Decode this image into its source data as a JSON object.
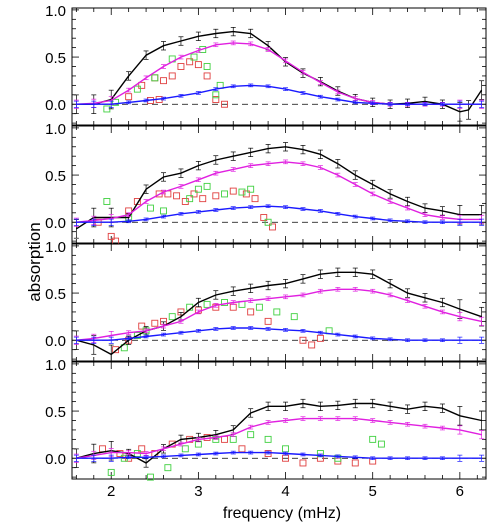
{
  "chart_data": {
    "type": "line",
    "xlabel": "frequency (mHz)",
    "ylabel": "absorption",
    "xlim": [
      1.55,
      6.3
    ],
    "ylim": [
      -0.22,
      1.02
    ],
    "x_ticks": [
      2,
      3,
      4,
      5,
      6
    ],
    "y_ticks": [
      0.0,
      0.5,
      1.0
    ],
    "y_tick_labels": [
      "0.0",
      "0.5",
      "1.0"
    ],
    "reference_line": 0.0,
    "colors": {
      "black": "#000000",
      "magenta": "#e020e0",
      "blue": "#1a1aff",
      "red_squares": "#e04040",
      "green_squares": "#40d040"
    },
    "panels": [
      {
        "series": [
          {
            "color": "black",
            "x": [
              1.6,
              1.8,
              2.0,
              2.2,
              2.4,
              2.6,
              2.8,
              3.0,
              3.2,
              3.4,
              3.6,
              3.8,
              4.0,
              4.2,
              4.4,
              4.6,
              4.8,
              5.0,
              5.2,
              5.4,
              5.6,
              5.8,
              6.0,
              6.1,
              6.25
            ],
            "y": [
              0.0,
              0.0,
              0.05,
              0.3,
              0.52,
              0.62,
              0.67,
              0.72,
              0.75,
              0.77,
              0.75,
              0.62,
              0.45,
              0.33,
              0.24,
              0.14,
              0.06,
              0.02,
              0.0,
              0.01,
              0.03,
              0.0,
              -0.08,
              -0.06,
              0.15
            ]
          },
          {
            "color": "magenta",
            "x": [
              1.6,
              1.8,
              2.0,
              2.2,
              2.4,
              2.6,
              2.8,
              3.0,
              3.2,
              3.4,
              3.6,
              3.8,
              4.0,
              4.2,
              4.4,
              4.6,
              4.8,
              5.0,
              5.2,
              5.4,
              5.6,
              5.8,
              6.0,
              6.25
            ],
            "y": [
              0.0,
              0.01,
              0.04,
              0.15,
              0.28,
              0.4,
              0.5,
              0.57,
              0.63,
              0.65,
              0.64,
              0.58,
              0.46,
              0.34,
              0.23,
              0.13,
              0.06,
              0.02,
              0.0,
              0.0,
              0.0,
              0.0,
              0.0,
              0.0
            ]
          },
          {
            "color": "blue",
            "x": [
              1.6,
              1.8,
              2.0,
              2.2,
              2.4,
              2.6,
              2.8,
              3.0,
              3.2,
              3.4,
              3.6,
              3.8,
              4.0,
              4.2,
              4.4,
              4.6,
              4.8,
              5.0,
              5.2,
              5.4,
              5.6,
              5.8,
              6.0,
              6.25
            ],
            "y": [
              0.0,
              0.0,
              0.0,
              0.02,
              0.04,
              0.06,
              0.09,
              0.12,
              0.16,
              0.19,
              0.2,
              0.19,
              0.16,
              0.12,
              0.08,
              0.05,
              0.02,
              0.01,
              0.0,
              0.0,
              0.0,
              0.0,
              0.0,
              0.0
            ]
          }
        ],
        "red_squares": {
          "x": [
            2.2,
            2.35,
            2.5,
            2.6,
            2.7,
            2.8,
            2.9,
            3.0,
            3.1,
            3.2,
            3.3,
            2.45,
            2.55
          ],
          "y": [
            0.08,
            0.2,
            0.28,
            0.25,
            0.3,
            0.4,
            0.45,
            0.42,
            0.3,
            0.05,
            0.0,
            0.04,
            0.05
          ]
        },
        "green_squares": {
          "x": [
            1.95,
            2.05,
            2.3,
            2.5,
            2.7,
            2.95,
            3.05,
            3.1,
            3.2,
            3.25
          ],
          "y": [
            -0.05,
            0.02,
            0.16,
            0.28,
            0.48,
            0.5,
            0.58,
            0.4,
            0.1,
            0.2
          ]
        }
      },
      {
        "series": [
          {
            "color": "black",
            "x": [
              1.6,
              1.8,
              2.0,
              2.2,
              2.4,
              2.6,
              2.8,
              3.0,
              3.2,
              3.4,
              3.6,
              3.8,
              4.0,
              4.2,
              4.4,
              4.6,
              4.8,
              5.0,
              5.2,
              5.4,
              5.6,
              5.8,
              6.0,
              6.25
            ],
            "y": [
              -0.07,
              0.05,
              0.05,
              0.05,
              0.35,
              0.48,
              0.52,
              0.6,
              0.66,
              0.7,
              0.74,
              0.78,
              0.8,
              0.77,
              0.72,
              0.62,
              0.5,
              0.4,
              0.3,
              0.22,
              0.15,
              0.12,
              0.08,
              0.08
            ]
          },
          {
            "color": "magenta",
            "x": [
              1.6,
              1.8,
              2.0,
              2.2,
              2.4,
              2.6,
              2.8,
              3.0,
              3.2,
              3.4,
              3.6,
              3.8,
              4.0,
              4.2,
              4.4,
              4.6,
              4.8,
              5.0,
              5.2,
              5.4,
              5.6,
              5.8,
              6.0,
              6.25
            ],
            "y": [
              0.0,
              0.02,
              0.04,
              0.08,
              0.22,
              0.32,
              0.38,
              0.45,
              0.52,
              0.56,
              0.6,
              0.62,
              0.64,
              0.62,
              0.58,
              0.5,
              0.4,
              0.3,
              0.22,
              0.15,
              0.08,
              0.05,
              0.03,
              0.03
            ]
          },
          {
            "color": "blue",
            "x": [
              1.6,
              1.8,
              2.0,
              2.2,
              2.4,
              2.6,
              2.8,
              3.0,
              3.2,
              3.4,
              3.6,
              3.8,
              4.0,
              4.2,
              4.4,
              4.6,
              4.8,
              5.0,
              5.2,
              5.4,
              5.6,
              5.8,
              6.0,
              6.25
            ],
            "y": [
              0.0,
              0.0,
              0.0,
              0.01,
              0.03,
              0.06,
              0.09,
              0.11,
              0.13,
              0.15,
              0.16,
              0.17,
              0.16,
              0.14,
              0.12,
              0.09,
              0.06,
              0.04,
              0.02,
              0.01,
              0.0,
              0.0,
              0.0,
              0.0
            ]
          }
        ],
        "red_squares": {
          "x": [
            1.85,
            2.0,
            2.05,
            2.2,
            2.3,
            2.55,
            2.65,
            2.75,
            2.85,
            2.95,
            3.05,
            3.2,
            3.4,
            3.55,
            3.65,
            3.75,
            3.85
          ],
          "y": [
            0.0,
            -0.15,
            -0.2,
            0.12,
            0.22,
            0.3,
            0.3,
            0.28,
            0.22,
            0.3,
            0.25,
            0.28,
            0.33,
            0.3,
            0.25,
            0.05,
            -0.05
          ]
        },
        "green_squares": {
          "x": [
            1.95,
            2.2,
            2.45,
            2.6,
            2.9,
            3.0,
            3.1,
            3.3,
            3.5,
            3.6,
            3.8
          ],
          "y": [
            0.22,
            0.05,
            0.15,
            0.12,
            0.25,
            0.35,
            0.38,
            0.3,
            0.32,
            0.35,
            0.0
          ]
        }
      },
      {
        "series": [
          {
            "color": "black",
            "x": [
              1.6,
              1.8,
              2.0,
              2.2,
              2.4,
              2.6,
              2.8,
              3.0,
              3.2,
              3.4,
              3.6,
              3.8,
              4.0,
              4.2,
              4.4,
              4.6,
              4.8,
              5.0,
              5.2,
              5.4,
              5.6,
              5.8,
              6.0,
              6.25
            ],
            "y": [
              0.0,
              -0.05,
              -0.15,
              0.0,
              0.1,
              0.15,
              0.25,
              0.4,
              0.48,
              0.52,
              0.55,
              0.58,
              0.6,
              0.65,
              0.7,
              0.72,
              0.72,
              0.7,
              0.6,
              0.5,
              0.45,
              0.4,
              0.33,
              0.25
            ]
          },
          {
            "color": "magenta",
            "x": [
              1.6,
              1.8,
              2.0,
              2.2,
              2.4,
              2.6,
              2.8,
              3.0,
              3.2,
              3.4,
              3.6,
              3.8,
              4.0,
              4.2,
              4.4,
              4.6,
              4.8,
              5.0,
              5.2,
              5.4,
              5.6,
              5.8,
              6.0,
              6.25
            ],
            "y": [
              0.0,
              0.02,
              0.05,
              0.08,
              0.1,
              0.15,
              0.2,
              0.3,
              0.37,
              0.4,
              0.42,
              0.44,
              0.46,
              0.48,
              0.52,
              0.54,
              0.54,
              0.52,
              0.48,
              0.42,
              0.36,
              0.3,
              0.25,
              0.2
            ]
          },
          {
            "color": "blue",
            "x": [
              1.6,
              1.8,
              2.0,
              2.2,
              2.4,
              2.6,
              2.8,
              3.0,
              3.2,
              3.4,
              3.6,
              3.8,
              4.0,
              4.2,
              4.4,
              4.6,
              4.8,
              5.0,
              5.2,
              5.4,
              5.6,
              5.8,
              6.0,
              6.25
            ],
            "y": [
              0.0,
              0.0,
              0.0,
              0.02,
              0.04,
              0.06,
              0.08,
              0.1,
              0.12,
              0.13,
              0.13,
              0.12,
              0.11,
              0.1,
              0.08,
              0.06,
              0.04,
              0.02,
              0.01,
              0.0,
              0.0,
              0.0,
              0.0,
              0.0
            ]
          }
        ],
        "red_squares": {
          "x": [
            2.05,
            2.2,
            2.35,
            2.5,
            2.6,
            2.8,
            3.0,
            3.2,
            3.4,
            3.6,
            3.8,
            4.2,
            4.3,
            4.4
          ],
          "y": [
            -0.1,
            0.0,
            0.15,
            0.18,
            0.2,
            0.3,
            0.32,
            0.35,
            0.35,
            0.3,
            0.2,
            0.0,
            -0.05,
            0.02
          ]
        },
        "green_squares": {
          "x": [
            2.15,
            2.3,
            2.4,
            2.7,
            2.9,
            3.1,
            3.3,
            3.5,
            3.7,
            3.9,
            4.1,
            4.5
          ],
          "y": [
            -0.08,
            0.05,
            0.1,
            0.25,
            0.35,
            0.38,
            0.4,
            0.38,
            0.35,
            0.3,
            0.25,
            0.1
          ]
        }
      },
      {
        "series": [
          {
            "color": "black",
            "x": [
              1.6,
              1.8,
              2.0,
              2.2,
              2.4,
              2.6,
              2.8,
              3.0,
              3.2,
              3.4,
              3.6,
              3.8,
              4.0,
              4.2,
              4.4,
              4.6,
              4.8,
              5.0,
              5.2,
              5.4,
              5.6,
              5.8,
              6.0,
              6.25
            ],
            "y": [
              0.0,
              0.05,
              0.08,
              0.05,
              -0.05,
              0.1,
              0.2,
              0.22,
              0.25,
              0.3,
              0.48,
              0.55,
              0.55,
              0.58,
              0.55,
              0.56,
              0.58,
              0.58,
              0.55,
              0.52,
              0.55,
              0.53,
              0.45,
              0.4
            ]
          },
          {
            "color": "magenta",
            "x": [
              1.6,
              1.8,
              2.0,
              2.2,
              2.4,
              2.6,
              2.8,
              3.0,
              3.2,
              3.4,
              3.6,
              3.8,
              4.0,
              4.2,
              4.4,
              4.6,
              4.8,
              5.0,
              5.2,
              5.4,
              5.6,
              5.8,
              6.0,
              6.25
            ],
            "y": [
              0.0,
              0.03,
              0.06,
              0.06,
              0.05,
              0.1,
              0.15,
              0.2,
              0.22,
              0.25,
              0.33,
              0.38,
              0.4,
              0.42,
              0.42,
              0.42,
              0.42,
              0.4,
              0.38,
              0.36,
              0.34,
              0.32,
              0.3,
              0.25
            ]
          },
          {
            "color": "blue",
            "x": [
              1.6,
              1.8,
              2.0,
              2.2,
              2.4,
              2.6,
              2.8,
              3.0,
              3.2,
              3.4,
              3.6,
              3.8,
              4.0,
              4.2,
              4.4,
              4.6,
              4.8,
              5.0,
              5.2,
              5.4,
              5.6,
              5.8,
              6.0,
              6.25
            ],
            "y": [
              0.0,
              0.0,
              0.0,
              0.01,
              0.01,
              0.02,
              0.03,
              0.04,
              0.05,
              0.06,
              0.06,
              0.06,
              0.05,
              0.04,
              0.03,
              0.02,
              0.01,
              0.0,
              0.0,
              0.0,
              0.0,
              0.0,
              0.0,
              0.0
            ]
          }
        ],
        "red_squares": {
          "x": [
            1.9,
            2.1,
            2.2,
            2.35,
            2.5,
            2.7,
            2.9,
            3.1,
            3.3,
            3.5,
            3.8,
            4.0,
            4.2,
            4.4,
            4.6,
            4.8,
            5.0
          ],
          "y": [
            0.1,
            0.05,
            0.0,
            0.1,
            0.05,
            0.15,
            0.2,
            0.22,
            0.2,
            0.1,
            0.05,
            0.0,
            -0.05,
            0.0,
            -0.03,
            -0.05,
            -0.03
          ]
        },
        "green_squares": {
          "x": [
            2.0,
            2.15,
            2.3,
            2.45,
            2.65,
            2.85,
            3.0,
            3.2,
            3.4,
            3.6,
            3.8,
            4.0,
            4.4,
            4.6,
            5.0,
            5.1
          ],
          "y": [
            -0.15,
            0.0,
            0.05,
            -0.2,
            -0.1,
            0.1,
            0.15,
            0.2,
            0.2,
            0.25,
            0.2,
            0.1,
            0.05,
            0.0,
            0.2,
            0.15
          ]
        }
      }
    ]
  }
}
